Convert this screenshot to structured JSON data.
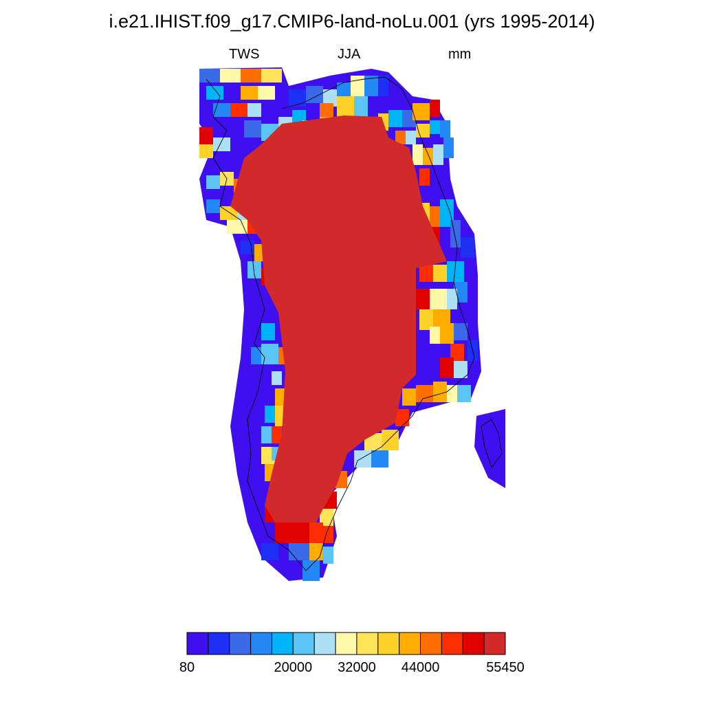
{
  "title": "i.e21.IHIST.f09_g17.CMIP6-land-noLu.001 (yrs 1995-2014)",
  "subtitle": {
    "variable": "TWS",
    "season": "JJA",
    "units": "mm"
  },
  "colorbar": {
    "colors": [
      "#3f0ff0",
      "#1f30f5",
      "#3a6ae8",
      "#2388f5",
      "#00b4f8",
      "#5cc4f5",
      "#aee0f5",
      "#fff8a8",
      "#ffe45a",
      "#ffd22a",
      "#ffac00",
      "#ff6e00",
      "#ff2e00",
      "#e00000",
      "#d22a2a"
    ],
    "tick_labels": [
      "80",
      "20000",
      "32000",
      "44000",
      "55450"
    ],
    "tick_positions": [
      0,
      5,
      8,
      11,
      14
    ]
  },
  "map": {
    "region": "Greenland",
    "dominant_value_color": "#d22a2a"
  }
}
